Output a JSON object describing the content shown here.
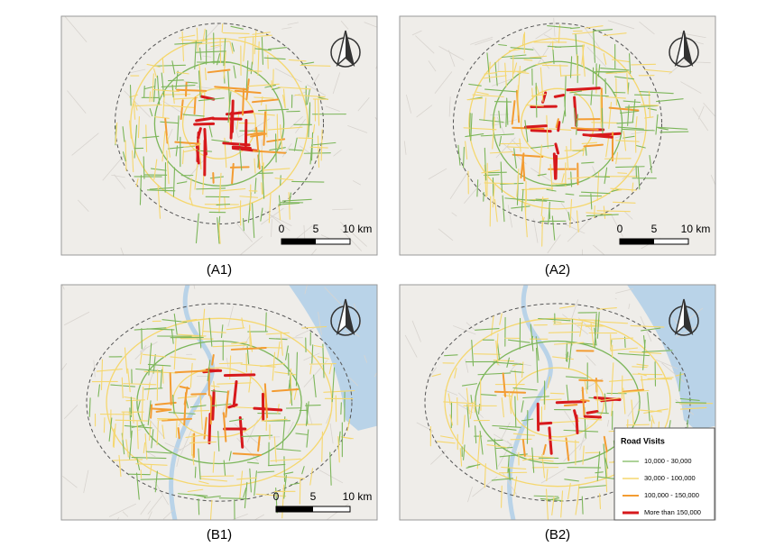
{
  "figure": {
    "panels": [
      {
        "label": "(A1)",
        "scale_bar": [
          "0",
          "5",
          "10 km"
        ]
      },
      {
        "label": "(A2)",
        "scale_bar": [
          "0",
          "5",
          "10 km"
        ]
      },
      {
        "label": "(B1)",
        "scale_bar": [
          "0",
          "5",
          "10 km"
        ]
      },
      {
        "label": "(B2)"
      }
    ],
    "legend": {
      "title": "Road Visits",
      "items": [
        {
          "label": "10,000 - 30,000",
          "color": "#7cb65a"
        },
        {
          "label": "30,000 - 100,000",
          "color": "#f5d76e"
        },
        {
          "label": "100,000 - 150,000",
          "color": "#f39c32"
        },
        {
          "label": "More than 150,000",
          "color": "#d7191c"
        }
      ]
    }
  }
}
